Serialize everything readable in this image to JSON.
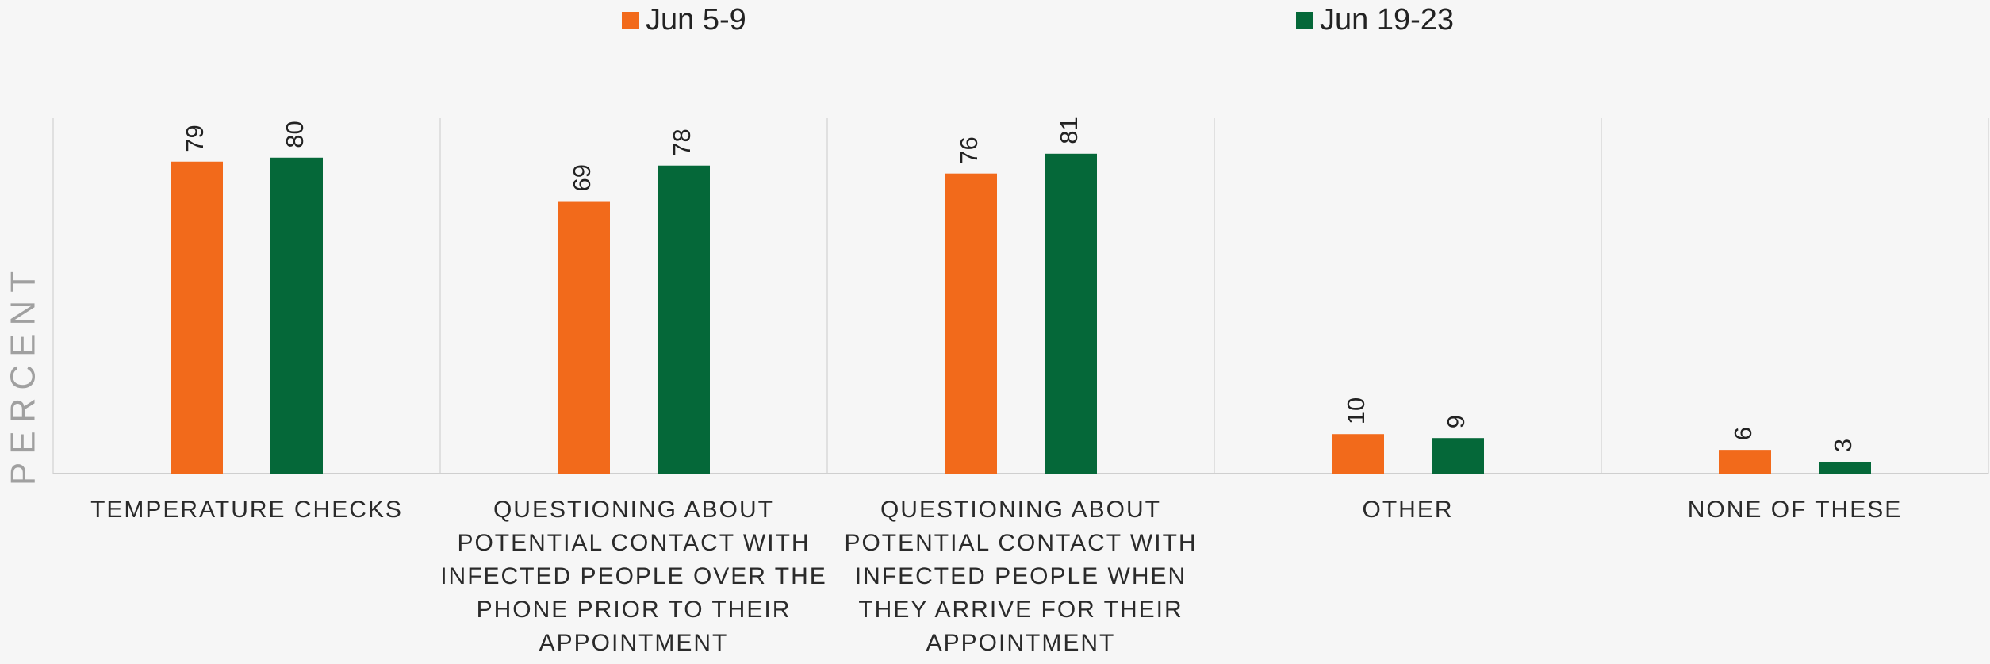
{
  "chart_data": {
    "type": "bar",
    "y_label": "PERCENT",
    "categories": [
      "TEMPERATURE CHECKS",
      "QUESTIONING ABOUT POTENTIAL CONTACT WITH INFECTED PEOPLE OVER THE PHONE PRIOR TO THEIR APPOINTMENT",
      "QUESTIONING ABOUT POTENTIAL CONTACT WITH INFECTED PEOPLE WHEN THEY ARRIVE FOR THEIR APPOINTMENT",
      "OTHER",
      "NONE OF THESE"
    ],
    "series": [
      {
        "name": "Jun 5-9",
        "color": "#f26a1b",
        "values": [
          79,
          69,
          76,
          10,
          6
        ]
      },
      {
        "name": "Jun 19-23",
        "color": "#056839",
        "values": [
          80,
          78,
          81,
          9,
          3
        ]
      }
    ],
    "ylim": [
      0,
      90
    ],
    "legend": "top"
  }
}
